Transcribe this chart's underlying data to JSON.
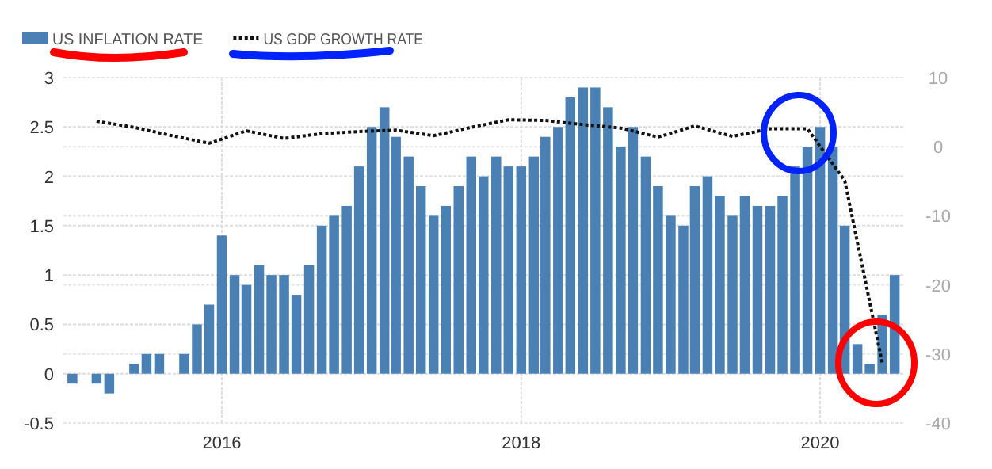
{
  "chart_data": {
    "type": "bar",
    "x": [
      "2015-01",
      "2015-02",
      "2015-03",
      "2015-04",
      "2015-05",
      "2015-06",
      "2015-07",
      "2015-08",
      "2015-09",
      "2015-10",
      "2015-11",
      "2015-12",
      "2016-01",
      "2016-02",
      "2016-03",
      "2016-04",
      "2016-05",
      "2016-06",
      "2016-07",
      "2016-08",
      "2016-09",
      "2016-10",
      "2016-11",
      "2016-12",
      "2017-01",
      "2017-02",
      "2017-03",
      "2017-04",
      "2017-05",
      "2017-06",
      "2017-07",
      "2017-08",
      "2017-09",
      "2017-10",
      "2017-11",
      "2017-12",
      "2018-01",
      "2018-02",
      "2018-03",
      "2018-04",
      "2018-05",
      "2018-06",
      "2018-07",
      "2018-08",
      "2018-09",
      "2018-10",
      "2018-11",
      "2018-12",
      "2019-01",
      "2019-02",
      "2019-03",
      "2019-04",
      "2019-05",
      "2019-06",
      "2019-07",
      "2019-08",
      "2019-09",
      "2019-10",
      "2019-11",
      "2019-12",
      "2020-01",
      "2020-02",
      "2020-03",
      "2020-04",
      "2020-05",
      "2020-06",
      "2020-07"
    ],
    "series": [
      {
        "name": "US INFLATION RATE",
        "color": "#4a80b4",
        "values": [
          -0.1,
          0,
          -0.1,
          -0.2,
          0,
          0.1,
          0.2,
          0.2,
          0,
          0.2,
          0.5,
          0.7,
          1.4,
          1.0,
          0.9,
          1.1,
          1.0,
          1.0,
          0.8,
          1.1,
          1.5,
          1.6,
          1.7,
          2.1,
          2.5,
          2.7,
          2.4,
          2.2,
          1.9,
          1.6,
          1.7,
          1.9,
          2.2,
          2.0,
          2.2,
          2.1,
          2.1,
          2.2,
          2.4,
          2.5,
          2.8,
          2.9,
          2.9,
          2.7,
          2.3,
          2.5,
          2.2,
          1.9,
          1.6,
          1.5,
          1.9,
          2.0,
          1.8,
          1.6,
          1.8,
          1.7,
          1.7,
          1.8,
          2.1,
          2.3,
          2.5,
          2.3,
          1.5,
          0.3,
          0.1,
          0.6,
          1.0
        ]
      },
      {
        "name": "US GDP GROWTH RATE",
        "type": "line",
        "axis": "y2",
        "color": "#111111",
        "line_style": "dotted",
        "x": [
          "2015-03",
          "2015-06",
          "2015-09",
          "2015-12",
          "2016-03",
          "2016-06",
          "2016-09",
          "2016-12",
          "2017-03",
          "2017-06",
          "2017-09",
          "2017-12",
          "2018-03",
          "2018-06",
          "2018-09",
          "2018-12",
          "2019-03",
          "2019-06",
          "2019-09",
          "2019-12",
          "2020-03",
          "2020-06"
        ],
        "values": [
          3.7,
          2.8,
          1.6,
          0.5,
          2.3,
          1.2,
          1.9,
          2.2,
          2.4,
          1.6,
          2.8,
          3.9,
          3.8,
          3.2,
          2.7,
          1.4,
          3.0,
          1.5,
          2.6,
          2.6,
          -4.9,
          -31.4
        ]
      }
    ],
    "xlim": [
      "2014-12-10",
      "2020-07-22"
    ],
    "xticks": [
      {
        "value": "2016-01",
        "label": "2016"
      },
      {
        "value": "2018-01",
        "label": "2018"
      },
      {
        "value": "2020-01",
        "label": "2020"
      }
    ],
    "ylim": [
      -0.5,
      3
    ],
    "yticks": [
      -0.5,
      0,
      0.5,
      1,
      1.5,
      2,
      2.5,
      3
    ],
    "y2lim": [
      -40,
      10
    ],
    "y2ticks": [
      -40,
      -30,
      -20,
      -10,
      0,
      10
    ],
    "grid": true,
    "legend": "top left",
    "marker": "none"
  }
}
